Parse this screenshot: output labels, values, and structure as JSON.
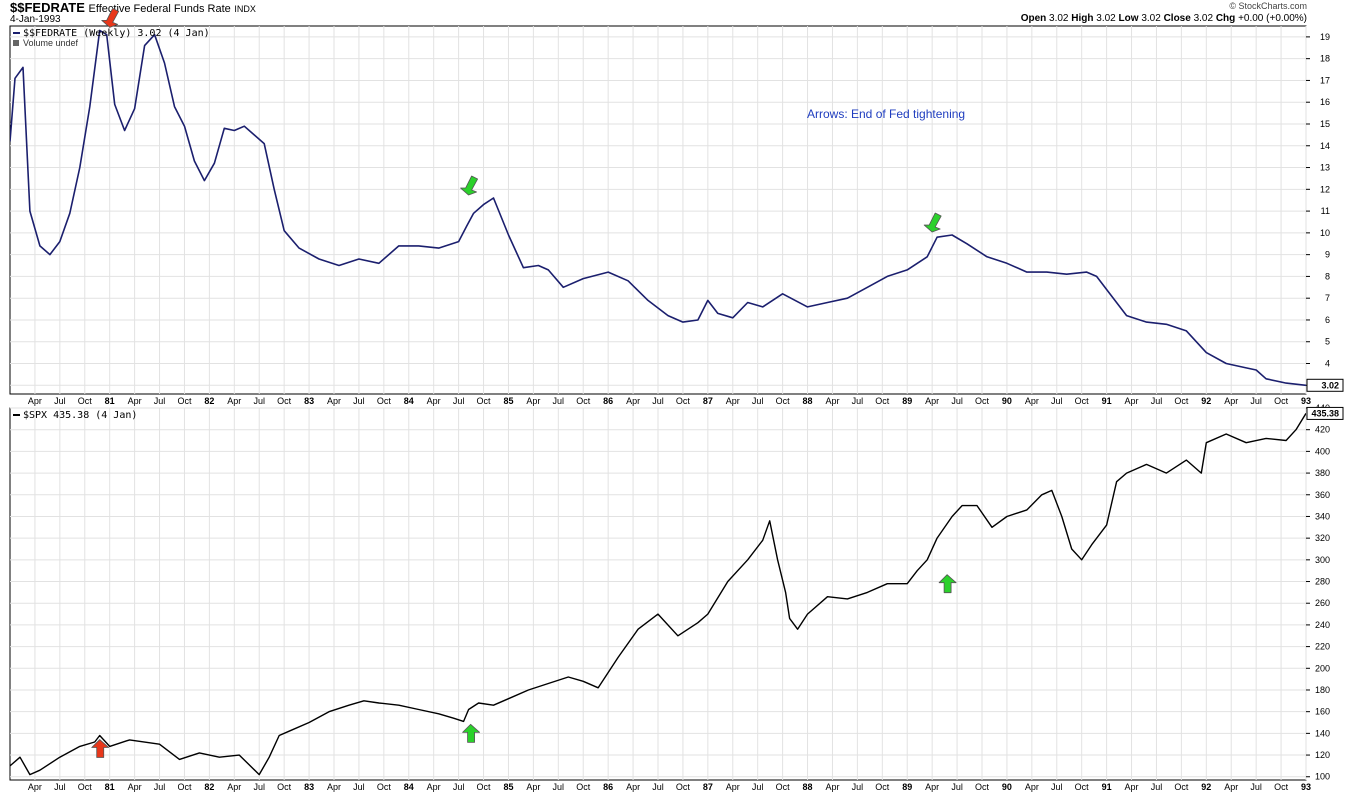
{
  "header": {
    "ticker": "$$FEDRATE",
    "name": "Effective Federal Funds Rate",
    "index": "INDX",
    "date": "4-Jan-1993",
    "brand": "© StockCharts.com",
    "ohlc": [
      {
        "label": "Open",
        "value": "3.02"
      },
      {
        "label": "High",
        "value": "3.02"
      },
      {
        "label": "Low",
        "value": "3.02"
      },
      {
        "label": "Close",
        "value": "3.02"
      },
      {
        "label": "Chg",
        "value": "+0.00 (+0.00%)"
      }
    ]
  },
  "colors": {
    "fed_line": "#1b1f6e",
    "spx_line": "#000000",
    "grid": "#e2e2e2",
    "note": "#1f3dbf",
    "arrow_red": "#e8371a",
    "arrow_green": "#2bd12b"
  },
  "chart_data": [
    {
      "type": "line",
      "legend": "$$FEDRATE (Weekly) 3.02 (4 Jan)",
      "volume_label": "Volume undef",
      "annotation": "Arrows: End of Fed tightening",
      "last_value": "3.02",
      "ylim": [
        2.6,
        19.5
      ],
      "yticks": [
        3,
        4,
        5,
        6,
        7,
        8,
        9,
        10,
        11,
        12,
        13,
        14,
        15,
        16,
        17,
        18,
        19
      ],
      "x": [
        1980.0,
        1980.05,
        1980.13,
        1980.2,
        1980.3,
        1980.4,
        1980.5,
        1980.6,
        1980.7,
        1980.8,
        1980.9,
        1980.97,
        1981.05,
        1981.15,
        1981.25,
        1981.35,
        1981.45,
        1981.55,
        1981.65,
        1981.75,
        1981.85,
        1981.95,
        1982.05,
        1982.15,
        1982.25,
        1982.35,
        1982.45,
        1982.55,
        1982.65,
        1982.75,
        1982.9,
        1983.1,
        1983.3,
        1983.5,
        1983.7,
        1983.9,
        1984.1,
        1984.3,
        1984.5,
        1984.58,
        1984.65,
        1984.75,
        1984.85,
        1985.0,
        1985.15,
        1985.3,
        1985.4,
        1985.55,
        1985.75,
        1986.0,
        1986.2,
        1986.4,
        1986.6,
        1986.75,
        1986.9,
        1987.0,
        1987.1,
        1987.25,
        1987.4,
        1987.55,
        1987.75,
        1988.0,
        1988.2,
        1988.4,
        1988.6,
        1988.8,
        1989.0,
        1989.2,
        1989.3,
        1989.45,
        1989.6,
        1989.8,
        1990.0,
        1990.2,
        1990.4,
        1990.6,
        1990.8,
        1990.9,
        1991.0,
        1991.2,
        1991.4,
        1991.6,
        1991.8,
        1992.0,
        1992.2,
        1992.4,
        1992.5,
        1992.6,
        1992.8,
        1993.0
      ],
      "y": [
        14.2,
        17.1,
        17.6,
        11.0,
        9.4,
        9.0,
        9.6,
        10.9,
        13.0,
        15.8,
        19.3,
        19.1,
        15.9,
        14.7,
        15.7,
        18.6,
        19.1,
        17.8,
        15.8,
        14.9,
        13.3,
        12.4,
        13.2,
        14.8,
        14.7,
        14.9,
        14.5,
        14.1,
        12.0,
        10.1,
        9.3,
        8.8,
        8.5,
        8.8,
        8.6,
        9.4,
        9.4,
        9.3,
        9.6,
        10.3,
        10.9,
        11.3,
        11.6,
        9.9,
        8.4,
        8.5,
        8.3,
        7.5,
        7.9,
        8.2,
        7.8,
        6.9,
        6.2,
        5.9,
        6.0,
        6.9,
        6.3,
        6.1,
        6.8,
        6.6,
        7.2,
        6.6,
        6.8,
        7.0,
        7.5,
        8.0,
        8.3,
        8.9,
        9.8,
        9.9,
        9.5,
        8.9,
        8.6,
        8.2,
        8.2,
        8.1,
        8.2,
        8.0,
        7.4,
        6.2,
        5.9,
        5.8,
        5.5,
        4.5,
        4.0,
        3.8,
        3.7,
        3.3,
        3.1,
        3.0
      ]
    },
    {
      "type": "line",
      "legend": "$SPX 435.38 (4 Jan)",
      "last_value": "435.38",
      "ylim": [
        97,
        440
      ],
      "yticks": [
        100,
        120,
        140,
        160,
        180,
        200,
        220,
        240,
        260,
        280,
        300,
        320,
        340,
        360,
        380,
        400,
        420,
        440
      ],
      "x": [
        1980.0,
        1980.1,
        1980.2,
        1980.3,
        1980.5,
        1980.7,
        1980.85,
        1980.9,
        1981.0,
        1981.2,
        1981.5,
        1981.7,
        1981.9,
        1982.1,
        1982.3,
        1982.5,
        1982.6,
        1982.7,
        1982.8,
        1983.0,
        1983.2,
        1983.4,
        1983.55,
        1983.7,
        1983.9,
        1984.1,
        1984.3,
        1984.45,
        1984.55,
        1984.6,
        1984.7,
        1984.85,
        1985.0,
        1985.2,
        1985.4,
        1985.6,
        1985.75,
        1985.9,
        1986.1,
        1986.3,
        1986.5,
        1986.7,
        1986.9,
        1987.0,
        1987.2,
        1987.4,
        1987.55,
        1987.62,
        1987.7,
        1987.78,
        1987.82,
        1987.9,
        1988.0,
        1988.2,
        1988.4,
        1988.6,
        1988.8,
        1989.0,
        1989.1,
        1989.2,
        1989.3,
        1989.45,
        1989.55,
        1989.7,
        1989.85,
        1990.0,
        1990.2,
        1990.35,
        1990.45,
        1990.55,
        1990.65,
        1990.75,
        1990.85,
        1991.0,
        1991.1,
        1991.2,
        1991.4,
        1991.6,
        1991.8,
        1991.95,
        1992.0,
        1992.2,
        1992.4,
        1992.6,
        1992.8,
        1992.9,
        1993.0
      ],
      "y": [
        110,
        118,
        102,
        106,
        118,
        128,
        132,
        138,
        128,
        134,
        130,
        116,
        122,
        118,
        120,
        102,
        118,
        138,
        142,
        150,
        160,
        166,
        170,
        168,
        166,
        162,
        158,
        154,
        151,
        162,
        168,
        166,
        172,
        180,
        186,
        192,
        188,
        182,
        210,
        236,
        250,
        230,
        242,
        250,
        280,
        300,
        318,
        336,
        300,
        270,
        246,
        236,
        250,
        266,
        264,
        270,
        278,
        278,
        290,
        300,
        320,
        340,
        350,
        350,
        330,
        340,
        346,
        360,
        364,
        340,
        310,
        300,
        314,
        332,
        372,
        380,
        388,
        380,
        392,
        380,
        408,
        416,
        408,
        412,
        410,
        420,
        435
      ]
    }
  ],
  "x_axis": {
    "ticks": [
      {
        "t": 1980.25,
        "label": "Apr",
        "bold": false
      },
      {
        "t": 1980.5,
        "label": "Jul",
        "bold": false
      },
      {
        "t": 1980.75,
        "label": "Oct",
        "bold": false
      },
      {
        "t": 1981.0,
        "label": "81",
        "bold": true
      },
      {
        "t": 1981.25,
        "label": "Apr",
        "bold": false
      },
      {
        "t": 1981.5,
        "label": "Jul",
        "bold": false
      },
      {
        "t": 1981.75,
        "label": "Oct",
        "bold": false
      },
      {
        "t": 1982.0,
        "label": "82",
        "bold": true
      },
      {
        "t": 1982.25,
        "label": "Apr",
        "bold": false
      },
      {
        "t": 1982.5,
        "label": "Jul",
        "bold": false
      },
      {
        "t": 1982.75,
        "label": "Oct",
        "bold": false
      },
      {
        "t": 1983.0,
        "label": "83",
        "bold": true
      },
      {
        "t": 1983.25,
        "label": "Apr",
        "bold": false
      },
      {
        "t": 1983.5,
        "label": "Jul",
        "bold": false
      },
      {
        "t": 1983.75,
        "label": "Oct",
        "bold": false
      },
      {
        "t": 1984.0,
        "label": "84",
        "bold": true
      },
      {
        "t": 1984.25,
        "label": "Apr",
        "bold": false
      },
      {
        "t": 1984.5,
        "label": "Jul",
        "bold": false
      },
      {
        "t": 1984.75,
        "label": "Oct",
        "bold": false
      },
      {
        "t": 1985.0,
        "label": "85",
        "bold": true
      },
      {
        "t": 1985.25,
        "label": "Apr",
        "bold": false
      },
      {
        "t": 1985.5,
        "label": "Jul",
        "bold": false
      },
      {
        "t": 1985.75,
        "label": "Oct",
        "bold": false
      },
      {
        "t": 1986.0,
        "label": "86",
        "bold": true
      },
      {
        "t": 1986.25,
        "label": "Apr",
        "bold": false
      },
      {
        "t": 1986.5,
        "label": "Jul",
        "bold": false
      },
      {
        "t": 1986.75,
        "label": "Oct",
        "bold": false
      },
      {
        "t": 1987.0,
        "label": "87",
        "bold": true
      },
      {
        "t": 1987.25,
        "label": "Apr",
        "bold": false
      },
      {
        "t": 1987.5,
        "label": "Jul",
        "bold": false
      },
      {
        "t": 1987.75,
        "label": "Oct",
        "bold": false
      },
      {
        "t": 1988.0,
        "label": "88",
        "bold": true
      },
      {
        "t": 1988.25,
        "label": "Apr",
        "bold": false
      },
      {
        "t": 1988.5,
        "label": "Jul",
        "bold": false
      },
      {
        "t": 1988.75,
        "label": "Oct",
        "bold": false
      },
      {
        "t": 1989.0,
        "label": "89",
        "bold": true
      },
      {
        "t": 1989.25,
        "label": "Apr",
        "bold": false
      },
      {
        "t": 1989.5,
        "label": "Jul",
        "bold": false
      },
      {
        "t": 1989.75,
        "label": "Oct",
        "bold": false
      },
      {
        "t": 1990.0,
        "label": "90",
        "bold": true
      },
      {
        "t": 1990.25,
        "label": "Apr",
        "bold": false
      },
      {
        "t": 1990.5,
        "label": "Jul",
        "bold": false
      },
      {
        "t": 1990.75,
        "label": "Oct",
        "bold": false
      },
      {
        "t": 1991.0,
        "label": "91",
        "bold": true
      },
      {
        "t": 1991.25,
        "label": "Apr",
        "bold": false
      },
      {
        "t": 1991.5,
        "label": "Jul",
        "bold": false
      },
      {
        "t": 1991.75,
        "label": "Oct",
        "bold": false
      },
      {
        "t": 1992.0,
        "label": "92",
        "bold": true
      },
      {
        "t": 1992.25,
        "label": "Apr",
        "bold": false
      },
      {
        "t": 1992.5,
        "label": "Jul",
        "bold": false
      },
      {
        "t": 1992.75,
        "label": "Oct",
        "bold": false
      },
      {
        "t": 1993.0,
        "label": "93",
        "bold": true
      }
    ]
  },
  "arrows": [
    {
      "panel": 0,
      "t": 1981.0,
      "v": 19.3,
      "color": "red",
      "dir": "down"
    },
    {
      "panel": 0,
      "t": 1984.6,
      "v": 11.6,
      "color": "green",
      "dir": "down"
    },
    {
      "panel": 0,
      "t": 1989.25,
      "v": 9.9,
      "color": "green",
      "dir": "down"
    },
    {
      "panel": 1,
      "t": 1980.9,
      "v": 138,
      "color": "red",
      "dir": "up"
    },
    {
      "panel": 1,
      "t": 1984.62,
      "v": 152,
      "color": "green",
      "dir": "up"
    },
    {
      "panel": 1,
      "t": 1989.4,
      "v": 290,
      "color": "green",
      "dir": "up"
    }
  ]
}
